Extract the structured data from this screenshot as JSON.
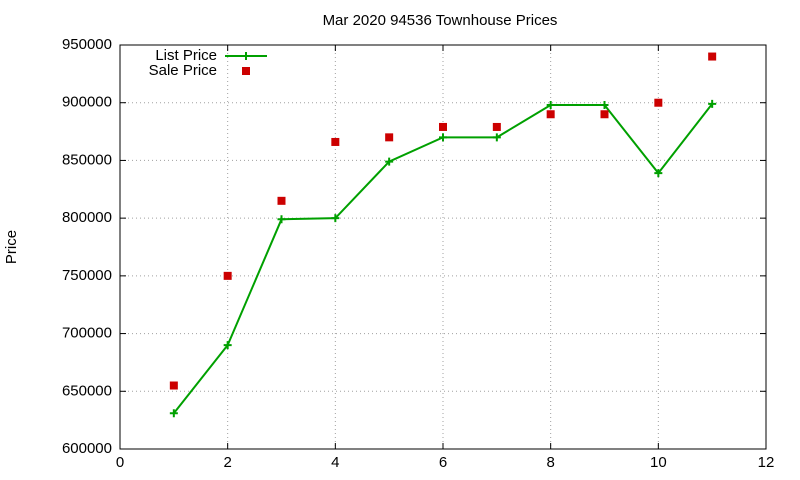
{
  "chart_data": {
    "type": "line",
    "title": "Mar 2020 94536 Townhouse Prices",
    "y_label": "Price",
    "x": [
      1,
      2,
      3,
      4,
      5,
      6,
      7,
      8,
      9,
      10,
      11
    ],
    "series": [
      {
        "name": "List Price",
        "color": "#00a000",
        "style": "linespoints",
        "values": [
          631000,
          690000,
          799000,
          800000,
          849000,
          870000,
          870000,
          898000,
          898000,
          839000,
          899000
        ]
      },
      {
        "name": "Sale Price",
        "color": "#cc0000",
        "style": "points",
        "values": [
          655000,
          750000,
          815000,
          866000,
          870000,
          879000,
          879000,
          890000,
          890000,
          900000,
          940000
        ]
      }
    ],
    "xlim": [
      0,
      12
    ],
    "xticks": [
      0,
      2,
      4,
      6,
      8,
      10,
      12
    ],
    "ylim": [
      600000,
      950000
    ],
    "yticks": [
      600000,
      650000,
      700000,
      750000,
      800000,
      850000,
      900000,
      950000
    ],
    "grid": true,
    "legend": "top-left"
  }
}
